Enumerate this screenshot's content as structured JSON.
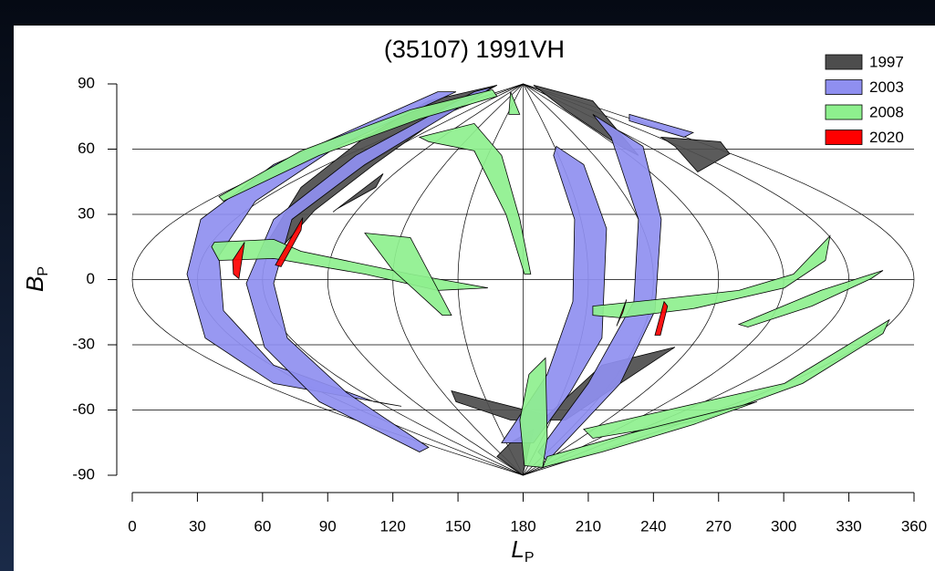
{
  "chart_data": {
    "type": "region-map",
    "title": "(35107) 1991VH",
    "x_label": "L",
    "x_label_sub": "P",
    "y_label": "B",
    "y_label_sub": "P",
    "xlim": [
      0,
      360
    ],
    "ylim": [
      -90,
      90
    ],
    "xticks": [
      0,
      30,
      60,
      90,
      120,
      150,
      180,
      210,
      240,
      270,
      300,
      330,
      360
    ],
    "yticks": [
      -90,
      -60,
      -30,
      0,
      30,
      60,
      90
    ],
    "grid": true,
    "legend": "upper right",
    "series": [
      {
        "name": "1997",
        "color": "#4d4d4d",
        "regions": [
          {
            "x": [
              60.9,
              77.7,
              107.1,
              136.5,
              168.0,
              140.7,
              111.3,
              84.0,
              67.2
            ],
            "y": [
              15.1,
              42.4,
              65.5,
              82.2,
              89.4,
              73.9,
              52.9,
              31.9,
              13.0
            ]
          },
          {
            "x": [
              92.4,
              115.5,
              112.1,
              94.5
            ],
            "y": [
              31.1,
              48.7,
              42.4,
              32.7
            ]
          },
          {
            "x": [
              184.8,
              212.1,
              233.1,
              224.7,
              199.5
            ],
            "y": [
              89.4,
              82.2,
              57.1,
              61.3,
              78.1
            ]
          },
          {
            "x": [
              243.6,
              270.9,
              275.1,
              260.4,
              249.9
            ],
            "y": [
              65.5,
              63.4,
              57.9,
              49.5,
              61.3
            ]
          },
          {
            "x": [
              147.0,
              165.9,
              191.1,
              216.3,
              249.9,
              224.7,
              199.5,
              174.2,
              149.1
            ],
            "y": [
              -51.2,
              -56.2,
              -62.5,
              -39.4,
              -31.1,
              -47.8,
              -64.6,
              -64.6,
              -56.2
            ]
          },
          {
            "x": [
              168.0,
              179.8,
              184.8,
              174.2
            ],
            "y": [
              -81.4,
              -90.0,
              -68.8,
              -75.1
            ]
          }
        ]
      },
      {
        "name": "2003",
        "color": "#8f8ff0",
        "regions": [
          {
            "x": [
              140.7,
              65.1,
              31.5,
              25.2,
              33.6,
              65.1,
              123.9,
              111.3,
              65.1,
              42.0,
              39.9,
              56.7,
              94.5,
              149.1
            ],
            "y": [
              86.4,
              52.9,
              27.7,
              2.5,
              -26.9,
              -47.8,
              -58.3,
              -56.2,
              -39.4,
              -14.3,
              10.9,
              36.1,
              61.3,
              86.4
            ]
          },
          {
            "x": [
              157.5,
              102.9,
              65.1,
              52.5,
              60.9,
              86.1,
              132.3,
              136.5,
              98.7,
              71.4,
              65.1,
              73.5,
              107.1,
              165.9
            ],
            "y": [
              86.4,
              57.1,
              27.7,
              -1.7,
              -31.1,
              -56.2,
              -79.3,
              -77.2,
              -52.0,
              -26.9,
              -1.7,
              27.7,
              52.9,
              88.5
            ]
          },
          {
            "x": [
              195.3,
              207.9,
              218.4,
              216.3,
              201.6,
              184.8,
              170.1,
              191.1,
              202.9,
              203.7,
              194.0
            ],
            "y": [
              61.3,
              52.9,
              23.5,
              -26.9,
              -52.0,
              -75.1,
              -75.1,
              -43.6,
              -10.1,
              27.7,
              57.1
            ]
          },
          {
            "x": [
              212.1,
              235.2,
              243.6,
              240.7,
              224.7,
              191.1,
              186.9,
              210.0,
              231.0,
              233.1,
              220.5
            ],
            "y": [
              76.0,
              61.3,
              27.7,
              -14.3,
              -47.8,
              -83.5,
              -79.3,
              -47.8,
              -10.1,
              27.7,
              65.5
            ]
          },
          {
            "x": [
              228.9,
              258.3,
              254.1,
              228.9
            ],
            "y": [
              76.0,
              67.6,
              65.5,
              73.0
            ]
          }
        ]
      },
      {
        "name": "2008",
        "color": "#8ef08e",
        "regions": [
          {
            "x": [
              39.9,
              77.7,
              128.1,
              165.9,
              168.0,
              132.3,
              86.1,
              42.0
            ],
            "y": [
              38.2,
              59.2,
              78.1,
              87.3,
              84.3,
              73.9,
              57.1,
              36.1
            ]
          },
          {
            "x": [
              174.2,
              178.4,
              173.4
            ],
            "y": [
              86.4,
              76.0,
              76.0
            ]
          },
          {
            "x": [
              132.3,
              157.5,
              170.1,
              178.5,
              183.5,
              180.6,
              172.2,
              157.5,
              136.5
            ],
            "y": [
              65.5,
              71.8,
              57.1,
              27.7,
              2.5,
              2.5,
              29.8,
              59.2,
              63.4
            ]
          },
          {
            "x": [
              37.8,
              65.1,
              77.7,
              128.1,
              163.8,
              140.7,
              107.1,
              65.1,
              39.9,
              36.5
            ],
            "y": [
              17.2,
              18.5,
              13.0,
              2.5,
              -3.8,
              -5.0,
              2.5,
              9.7,
              8.8,
              15.1
            ]
          },
          {
            "x": [
              107.1,
              128.1,
              147.0,
              142.8,
              119.7
            ],
            "y": [
              21.4,
              19.3,
              -16.4,
              -16.4,
              4.6
            ]
          },
          {
            "x": [
              212.1,
              241.5,
              279.3,
              304.5,
              321.3,
              319.2,
              300.3,
              258.3,
              224.7,
              212.1
            ],
            "y": [
              -12.2,
              -9.2,
              -5.0,
              2.5,
              20.1,
              8.8,
              -3.8,
              -13.4,
              -17.6,
              -16.4
            ]
          },
          {
            "x": [
              279.3,
              317.1,
              345.7,
              340.2,
              312.9,
              283.5
            ],
            "y": [
              -20.6,
              -5.0,
              4.2,
              0.4,
              -12.2,
              -21.8
            ]
          },
          {
            "x": [
              207.9,
              254.1,
              300.3,
              348.6,
              345.7,
              308.7,
              262.5,
              212.1
            ],
            "y": [
              -68.8,
              -58.3,
              -47.8,
              -18.5,
              -24.8,
              -47.8,
              -64.6,
              -73.0
            ]
          },
          {
            "x": [
              191.1,
              233.1,
              287.7,
              258.3,
              216.3,
              189.0
            ],
            "y": [
              -81.4,
              -69.7,
              -56.2,
              -66.7,
              -79.3,
              -86.4
            ]
          },
          {
            "x": [
              182.7,
              190.3,
              191.1,
              189.0,
              180.6,
              178.5
            ],
            "y": [
              -43.6,
              -36.1,
              -73.0,
              -86.4,
              -85.6,
              -64.6
            ]
          }
        ]
      },
      {
        "name": "2020",
        "color": "#ff0000",
        "regions": [
          {
            "x": [
              46.2,
              51.7,
              49.1,
              46.6
            ],
            "y": [
              8.8,
              17.2,
              0.4,
              2.5
            ]
          },
          {
            "x": [
              65.9,
              78.5,
              77.7,
              68.5
            ],
            "y": [
              6.7,
              28.5,
              22.7,
              5.9
            ]
          },
          {
            "x": [
              223.0,
              227.6,
              225.9
            ],
            "y": [
              -21.4,
              -9.2,
              -15.1
            ]
          },
          {
            "x": [
              240.7,
              244.9,
              246.5,
              243.2
            ],
            "y": [
              -25.6,
              -10.1,
              -12.2,
              -25.6
            ]
          }
        ]
      }
    ]
  }
}
